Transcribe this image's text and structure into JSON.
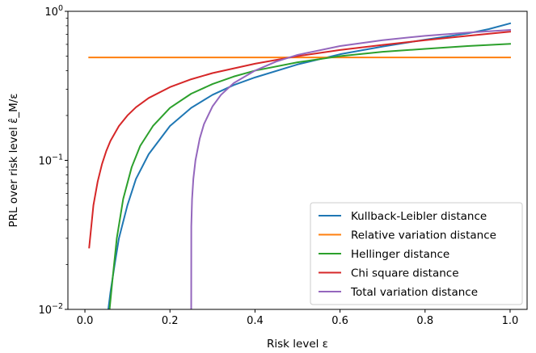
{
  "chart_data": {
    "type": "line",
    "xlabel": "Risk level ε",
    "ylabel": "PRL over risk level ε̂_M/ε",
    "xlim": [
      -0.04,
      1.04
    ],
    "ylim": [
      0.01,
      1.0
    ],
    "y_scale": "log",
    "grid": false,
    "legend_position": "lower-right",
    "x_ticks": [
      {
        "value": 0.0,
        "label": "0.0"
      },
      {
        "value": 0.2,
        "label": "0.2"
      },
      {
        "value": 0.4,
        "label": "0.4"
      },
      {
        "value": 0.6,
        "label": "0.6"
      },
      {
        "value": 0.8,
        "label": "0.8"
      },
      {
        "value": 1.0,
        "label": "1.0"
      }
    ],
    "y_ticks": [
      {
        "value": 0.01,
        "base": "10",
        "exp": "−2"
      },
      {
        "value": 0.1,
        "base": "10",
        "exp": "−1"
      },
      {
        "value": 1.0,
        "base": "10",
        "exp": "0"
      }
    ],
    "series": [
      {
        "name": "Kullback-Leibler distance",
        "color": "#1f77b4",
        "x": [
          0.055,
          0.06,
          0.07,
          0.08,
          0.1,
          0.12,
          0.15,
          0.2,
          0.25,
          0.3,
          0.35,
          0.4,
          0.5,
          0.6,
          0.7,
          0.8,
          0.9,
          0.95,
          1.0
        ],
        "y": [
          0.01,
          0.013,
          0.02,
          0.03,
          0.05,
          0.075,
          0.11,
          0.17,
          0.225,
          0.275,
          0.32,
          0.36,
          0.44,
          0.515,
          0.58,
          0.645,
          0.71,
          0.76,
          0.83
        ]
      },
      {
        "name": "Relative variation distance",
        "color": "#ff7f0e",
        "x": [
          0.01,
          1.0
        ],
        "y": [
          0.49,
          0.49
        ]
      },
      {
        "name": "Hellinger distance",
        "color": "#2ca02c",
        "x": [
          0.058,
          0.065,
          0.075,
          0.09,
          0.11,
          0.13,
          0.16,
          0.2,
          0.25,
          0.3,
          0.35,
          0.4,
          0.5,
          0.6,
          0.7,
          0.8,
          0.9,
          1.0
        ],
        "y": [
          0.01,
          0.016,
          0.03,
          0.055,
          0.09,
          0.125,
          0.17,
          0.225,
          0.28,
          0.325,
          0.365,
          0.4,
          0.455,
          0.5,
          0.535,
          0.56,
          0.585,
          0.605
        ]
      },
      {
        "name": "Chi square distance",
        "color": "#d62728",
        "x": [
          0.01,
          0.02,
          0.03,
          0.04,
          0.05,
          0.06,
          0.08,
          0.1,
          0.12,
          0.15,
          0.2,
          0.25,
          0.3,
          0.4,
          0.5,
          0.6,
          0.7,
          0.8,
          0.9,
          1.0
        ],
        "y": [
          0.026,
          0.05,
          0.072,
          0.094,
          0.115,
          0.135,
          0.17,
          0.2,
          0.227,
          0.262,
          0.31,
          0.35,
          0.385,
          0.445,
          0.5,
          0.55,
          0.595,
          0.64,
          0.685,
          0.73
        ]
      },
      {
        "name": "Total variation distance",
        "color": "#9467bd",
        "x": [
          0.25,
          0.2502,
          0.252,
          0.255,
          0.26,
          0.27,
          0.28,
          0.3,
          0.32,
          0.35,
          0.4,
          0.45,
          0.5,
          0.6,
          0.7,
          0.8,
          0.9,
          1.0
        ],
        "y": [
          0.01,
          0.036,
          0.055,
          0.075,
          0.1,
          0.14,
          0.175,
          0.23,
          0.275,
          0.33,
          0.4,
          0.46,
          0.51,
          0.585,
          0.64,
          0.685,
          0.72,
          0.75
        ]
      }
    ]
  }
}
